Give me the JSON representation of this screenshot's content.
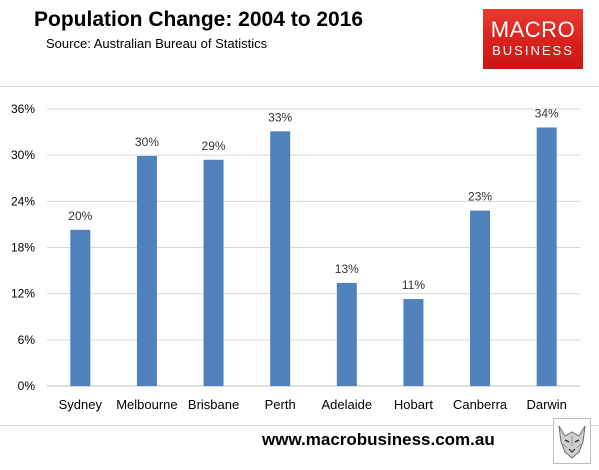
{
  "header": {
    "title": "Population Change: 2004 to 2016",
    "subtitle": "Source: Australian Bureau of Statistics"
  },
  "logo": {
    "line1": "MACRO",
    "line2": "BUSINESS",
    "color": "#d71f1b"
  },
  "footer": {
    "url": "www.macrobusiness.com.au",
    "icon": "wolf-logo-icon"
  },
  "chart_data": {
    "type": "bar",
    "title": "Population Change: 2004 to 2016",
    "xlabel": "",
    "ylabel": "",
    "categories": [
      "Sydney",
      "Melbourne",
      "Brisbane",
      "Perth",
      "Adelaide",
      "Hobart",
      "Canberra",
      "Darwin"
    ],
    "values": [
      20.3,
      29.9,
      29.4,
      33.1,
      13.4,
      11.3,
      22.8,
      33.6
    ],
    "data_labels": [
      "20%",
      "30%",
      "29%",
      "33%",
      "13%",
      "11%",
      "23%",
      "34%"
    ],
    "ylim": [
      0,
      36
    ],
    "yticks": [
      0,
      6,
      12,
      18,
      24,
      30,
      36
    ],
    "ytick_labels": [
      "0%",
      "6%",
      "12%",
      "18%",
      "24%",
      "30%",
      "36%"
    ],
    "grid": true,
    "bar_color": "#4f81bd",
    "grid_color": "#d9d9d9"
  }
}
